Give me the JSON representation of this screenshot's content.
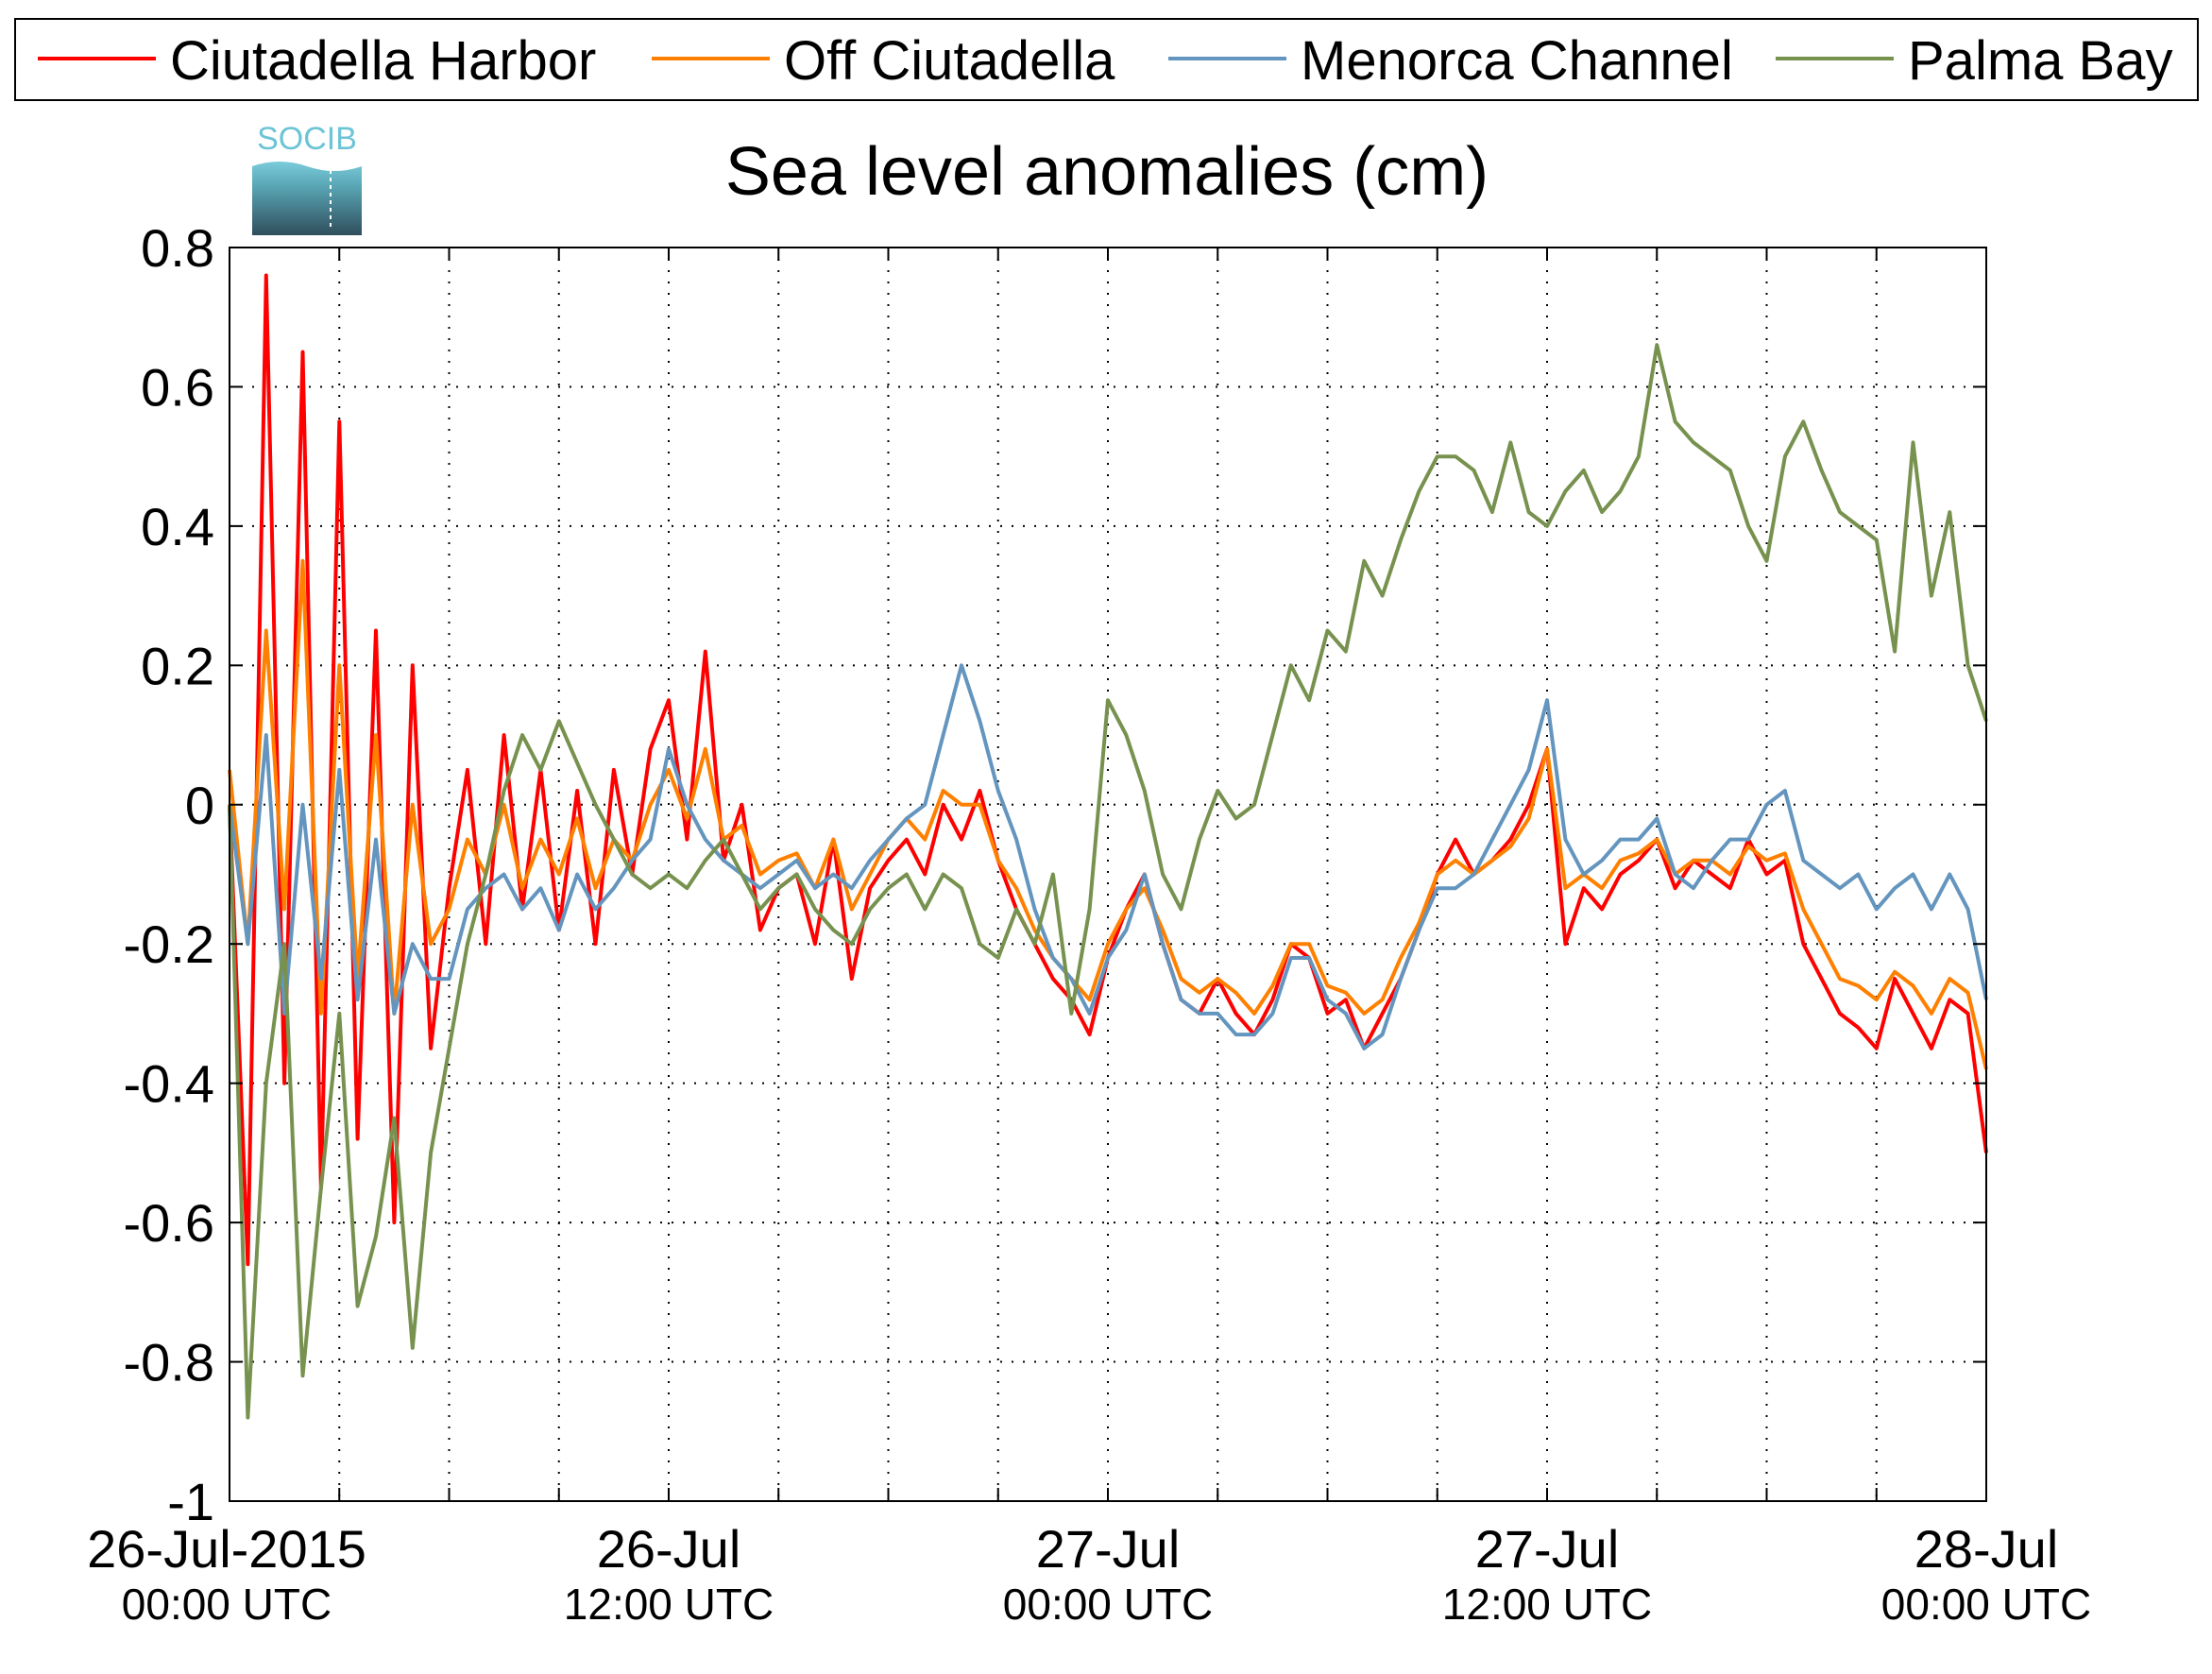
{
  "chart_data": {
    "type": "line",
    "title": "Sea level anomalies (cm)",
    "logo_text": "SOCIB",
    "x_unit": "hours since 26-Jul-2015 00:00 UTC",
    "xlim": [
      0,
      48
    ],
    "ylim": [
      -1,
      0.8
    ],
    "grid": true,
    "legend_placement": "top",
    "x_ticks": [
      0,
      3,
      6,
      9,
      12,
      15,
      18,
      21,
      24,
      27,
      30,
      33,
      36,
      39,
      42,
      45,
      48
    ],
    "y_ticks": [
      -1,
      -0.8,
      -0.6,
      -0.4,
      -0.2,
      0,
      0.2,
      0.4,
      0.6,
      0.8
    ],
    "y_tick_labels": [
      "-1",
      "-0.8",
      "-0.6",
      "-0.4",
      "-0.2",
      "0",
      "0.2",
      "0.4",
      "0.6",
      "0.8"
    ],
    "x_labels": [
      {
        "x": 0,
        "date": "26-Jul-2015",
        "time": "00:00 UTC"
      },
      {
        "x": 12,
        "date": "26-Jul",
        "time": "12:00 UTC"
      },
      {
        "x": 24,
        "date": "27-Jul",
        "time": "00:00 UTC"
      },
      {
        "x": 36,
        "date": "27-Jul",
        "time": "12:00 UTC"
      },
      {
        "x": 48,
        "date": "28-Jul",
        "time": "00:00 UTC"
      }
    ],
    "series": [
      {
        "name": "Ciutadella Harbor",
        "color": "#ff0000",
        "x": [
          0,
          0.5,
          1.0,
          1.5,
          2.0,
          2.5,
          3.0,
          3.5,
          4.0,
          4.5,
          5.0,
          5.5,
          6.0,
          6.5,
          7.0,
          7.5,
          8.0,
          8.5,
          9.0,
          9.5,
          10.0,
          10.5,
          11.0,
          11.5,
          12.0,
          12.5,
          13.0,
          13.5,
          14.0,
          14.5,
          15.0,
          15.5,
          16.0,
          16.5,
          17.0,
          17.5,
          18.0,
          18.5,
          19.0,
          19.5,
          20.0,
          20.5,
          21.0,
          21.5,
          22.0,
          22.5,
          23.0,
          23.5,
          24.0,
          24.5,
          25.0,
          25.5,
          26.0,
          26.5,
          27.0,
          27.5,
          28.0,
          28.5,
          29.0,
          29.5,
          30.0,
          30.5,
          31.0,
          31.5,
          32.0,
          32.5,
          33.0,
          33.5,
          34.0,
          34.5,
          35.0,
          35.5,
          36.0,
          36.5,
          37.0,
          37.5,
          38.0,
          38.5,
          39.0,
          39.5,
          40.0,
          40.5,
          41.0,
          41.5,
          42.0,
          42.5,
          43.0,
          43.5,
          44.0,
          44.5,
          45.0,
          45.5,
          46.0,
          46.5,
          47.0,
          47.5,
          48.0
        ],
        "y": [
          0.0,
          -0.66,
          0.76,
          -0.4,
          0.65,
          -0.55,
          0.55,
          -0.48,
          0.25,
          -0.6,
          0.2,
          -0.35,
          -0.12,
          0.05,
          -0.2,
          0.1,
          -0.15,
          0.05,
          -0.18,
          0.02,
          -0.2,
          0.05,
          -0.1,
          0.08,
          0.15,
          -0.05,
          0.22,
          -0.08,
          0.0,
          -0.18,
          -0.12,
          -0.1,
          -0.2,
          -0.05,
          -0.25,
          -0.12,
          -0.08,
          -0.05,
          -0.1,
          0.0,
          -0.05,
          0.02,
          -0.08,
          -0.15,
          -0.2,
          -0.25,
          -0.28,
          -0.33,
          -0.22,
          -0.15,
          -0.1,
          -0.2,
          -0.28,
          -0.3,
          -0.25,
          -0.3,
          -0.33,
          -0.28,
          -0.2,
          -0.22,
          -0.3,
          -0.28,
          -0.35,
          -0.3,
          -0.25,
          -0.18,
          -0.1,
          -0.05,
          -0.1,
          -0.08,
          -0.05,
          0.0,
          0.08,
          -0.2,
          -0.12,
          -0.15,
          -0.1,
          -0.08,
          -0.05,
          -0.12,
          -0.08,
          -0.1,
          -0.12,
          -0.05,
          -0.1,
          -0.08,
          -0.2,
          -0.25,
          -0.3,
          -0.32,
          -0.35,
          -0.25,
          -0.3,
          -0.35,
          -0.28,
          -0.3,
          -0.5
        ]
      },
      {
        "name": "Off Ciutadella",
        "color": "#ff8000",
        "x": [
          0,
          0.5,
          1.0,
          1.5,
          2.0,
          2.5,
          3.0,
          3.5,
          4.0,
          4.5,
          5.0,
          5.5,
          6.0,
          6.5,
          7.0,
          7.5,
          8.0,
          8.5,
          9.0,
          9.5,
          10.0,
          10.5,
          11.0,
          11.5,
          12.0,
          12.5,
          13.0,
          13.5,
          14.0,
          14.5,
          15.0,
          15.5,
          16.0,
          16.5,
          17.0,
          17.5,
          18.0,
          18.5,
          19.0,
          19.5,
          20.0,
          20.5,
          21.0,
          21.5,
          22.0,
          22.5,
          23.0,
          23.5,
          24.0,
          24.5,
          25.0,
          25.5,
          26.0,
          26.5,
          27.0,
          27.5,
          28.0,
          28.5,
          29.0,
          29.5,
          30.0,
          30.5,
          31.0,
          31.5,
          32.0,
          32.5,
          33.0,
          33.5,
          34.0,
          34.5,
          35.0,
          35.5,
          36.0,
          36.5,
          37.0,
          37.5,
          38.0,
          38.5,
          39.0,
          39.5,
          40.0,
          40.5,
          41.0,
          41.5,
          42.0,
          42.5,
          43.0,
          43.5,
          44.0,
          44.5,
          45.0,
          45.5,
          46.0,
          46.5,
          47.0,
          47.5,
          48.0
        ],
        "y": [
          0.05,
          -0.2,
          0.25,
          -0.15,
          0.35,
          -0.3,
          0.2,
          -0.25,
          0.1,
          -0.3,
          0.0,
          -0.2,
          -0.15,
          -0.05,
          -0.1,
          0.0,
          -0.12,
          -0.05,
          -0.1,
          -0.02,
          -0.12,
          -0.05,
          -0.08,
          0.0,
          0.05,
          -0.02,
          0.08,
          -0.05,
          -0.03,
          -0.1,
          -0.08,
          -0.07,
          -0.12,
          -0.05,
          -0.15,
          -0.1,
          -0.05,
          -0.02,
          -0.05,
          0.02,
          0.0,
          0.0,
          -0.08,
          -0.12,
          -0.18,
          -0.22,
          -0.25,
          -0.28,
          -0.2,
          -0.15,
          -0.12,
          -0.18,
          -0.25,
          -0.27,
          -0.25,
          -0.27,
          -0.3,
          -0.26,
          -0.2,
          -0.2,
          -0.26,
          -0.27,
          -0.3,
          -0.28,
          -0.22,
          -0.17,
          -0.1,
          -0.08,
          -0.1,
          -0.08,
          -0.06,
          -0.02,
          0.08,
          -0.12,
          -0.1,
          -0.12,
          -0.08,
          -0.07,
          -0.05,
          -0.1,
          -0.08,
          -0.08,
          -0.1,
          -0.06,
          -0.08,
          -0.07,
          -0.15,
          -0.2,
          -0.25,
          -0.26,
          -0.28,
          -0.24,
          -0.26,
          -0.3,
          -0.25,
          -0.27,
          -0.38
        ]
      },
      {
        "name": "Menorca Channel",
        "color": "#6495be",
        "x": [
          0,
          0.5,
          1.0,
          1.5,
          2.0,
          2.5,
          3.0,
          3.5,
          4.0,
          4.5,
          5.0,
          5.5,
          6.0,
          6.5,
          7.0,
          7.5,
          8.0,
          8.5,
          9.0,
          9.5,
          10.0,
          10.5,
          11.0,
          11.5,
          12.0,
          12.5,
          13.0,
          13.5,
          14.0,
          14.5,
          15.0,
          15.5,
          16.0,
          16.5,
          17.0,
          17.5,
          18.0,
          18.5,
          19.0,
          19.5,
          20.0,
          20.5,
          21.0,
          21.5,
          22.0,
          22.5,
          23.0,
          23.5,
          24.0,
          24.5,
          25.0,
          25.5,
          26.0,
          26.5,
          27.0,
          27.5,
          28.0,
          28.5,
          29.0,
          29.5,
          30.0,
          30.5,
          31.0,
          31.5,
          32.0,
          32.5,
          33.0,
          33.5,
          34.0,
          34.5,
          35.0,
          35.5,
          36.0,
          36.5,
          37.0,
          37.5,
          38.0,
          38.5,
          39.0,
          39.5,
          40.0,
          40.5,
          41.0,
          41.5,
          42.0,
          42.5,
          43.0,
          43.5,
          44.0,
          44.5,
          45.0,
          45.5,
          46.0,
          46.5,
          47.0,
          47.5,
          48.0
        ],
        "y": [
          0.0,
          -0.2,
          0.1,
          -0.3,
          0.0,
          -0.25,
          0.05,
          -0.28,
          -0.05,
          -0.3,
          -0.2,
          -0.25,
          -0.25,
          -0.15,
          -0.12,
          -0.1,
          -0.15,
          -0.12,
          -0.18,
          -0.1,
          -0.15,
          -0.12,
          -0.08,
          -0.05,
          0.08,
          0.0,
          -0.05,
          -0.08,
          -0.1,
          -0.12,
          -0.1,
          -0.08,
          -0.12,
          -0.1,
          -0.12,
          -0.08,
          -0.05,
          -0.02,
          0.0,
          0.1,
          0.2,
          0.12,
          0.02,
          -0.05,
          -0.15,
          -0.22,
          -0.25,
          -0.3,
          -0.22,
          -0.18,
          -0.1,
          -0.2,
          -0.28,
          -0.3,
          -0.3,
          -0.33,
          -0.33,
          -0.3,
          -0.22,
          -0.22,
          -0.28,
          -0.3,
          -0.35,
          -0.33,
          -0.25,
          -0.18,
          -0.12,
          -0.12,
          -0.1,
          -0.05,
          0.0,
          0.05,
          0.15,
          -0.05,
          -0.1,
          -0.08,
          -0.05,
          -0.05,
          -0.02,
          -0.1,
          -0.12,
          -0.08,
          -0.05,
          -0.05,
          0.0,
          0.02,
          -0.08,
          -0.1,
          -0.12,
          -0.1,
          -0.15,
          -0.12,
          -0.1,
          -0.15,
          -0.1,
          -0.15,
          -0.28
        ]
      },
      {
        "name": "Palma Bay",
        "color": "#77924f",
        "x": [
          0,
          0.5,
          1.0,
          1.5,
          2.0,
          2.5,
          3.0,
          3.5,
          4.0,
          4.5,
          5.0,
          5.5,
          6.0,
          6.5,
          7.0,
          7.5,
          8.0,
          8.5,
          9.0,
          9.5,
          10.0,
          10.5,
          11.0,
          11.5,
          12.0,
          12.5,
          13.0,
          13.5,
          14.0,
          14.5,
          15.0,
          15.5,
          16.0,
          16.5,
          17.0,
          17.5,
          18.0,
          18.5,
          19.0,
          19.5,
          20.0,
          20.5,
          21.0,
          21.5,
          22.0,
          22.5,
          23.0,
          23.5,
          24.0,
          24.5,
          25.0,
          25.5,
          26.0,
          26.5,
          27.0,
          27.5,
          28.0,
          28.5,
          29.0,
          29.5,
          30.0,
          30.5,
          31.0,
          31.5,
          32.0,
          32.5,
          33.0,
          33.5,
          34.0,
          34.5,
          35.0,
          35.5,
          36.0,
          36.5,
          37.0,
          37.5,
          38.0,
          38.5,
          39.0,
          39.5,
          40.0,
          40.5,
          41.0,
          41.5,
          42.0,
          42.5,
          43.0,
          43.5,
          44.0,
          44.5,
          45.0,
          45.5,
          46.0,
          46.5,
          47.0,
          47.5,
          48.0
        ],
        "y": [
          0.0,
          -0.88,
          -0.4,
          -0.2,
          -0.82,
          -0.55,
          -0.3,
          -0.72,
          -0.62,
          -0.45,
          -0.78,
          -0.5,
          -0.35,
          -0.2,
          -0.1,
          0.02,
          0.1,
          0.05,
          0.12,
          0.06,
          0.0,
          -0.05,
          -0.1,
          -0.12,
          -0.1,
          -0.12,
          -0.08,
          -0.05,
          -0.1,
          -0.15,
          -0.12,
          -0.1,
          -0.15,
          -0.18,
          -0.2,
          -0.15,
          -0.12,
          -0.1,
          -0.15,
          -0.1,
          -0.12,
          -0.2,
          -0.22,
          -0.15,
          -0.2,
          -0.1,
          -0.3,
          -0.15,
          0.15,
          0.1,
          0.02,
          -0.1,
          -0.15,
          -0.05,
          0.02,
          -0.02,
          0.0,
          0.1,
          0.2,
          0.15,
          0.25,
          0.22,
          0.35,
          0.3,
          0.38,
          0.45,
          0.5,
          0.5,
          0.48,
          0.42,
          0.52,
          0.42,
          0.4,
          0.45,
          0.48,
          0.42,
          0.45,
          0.5,
          0.66,
          0.55,
          0.52,
          0.5,
          0.48,
          0.4,
          0.35,
          0.5,
          0.55,
          0.48,
          0.42,
          0.4,
          0.38,
          0.22,
          0.52,
          0.3,
          0.42,
          0.2,
          0.12
        ]
      }
    ]
  }
}
